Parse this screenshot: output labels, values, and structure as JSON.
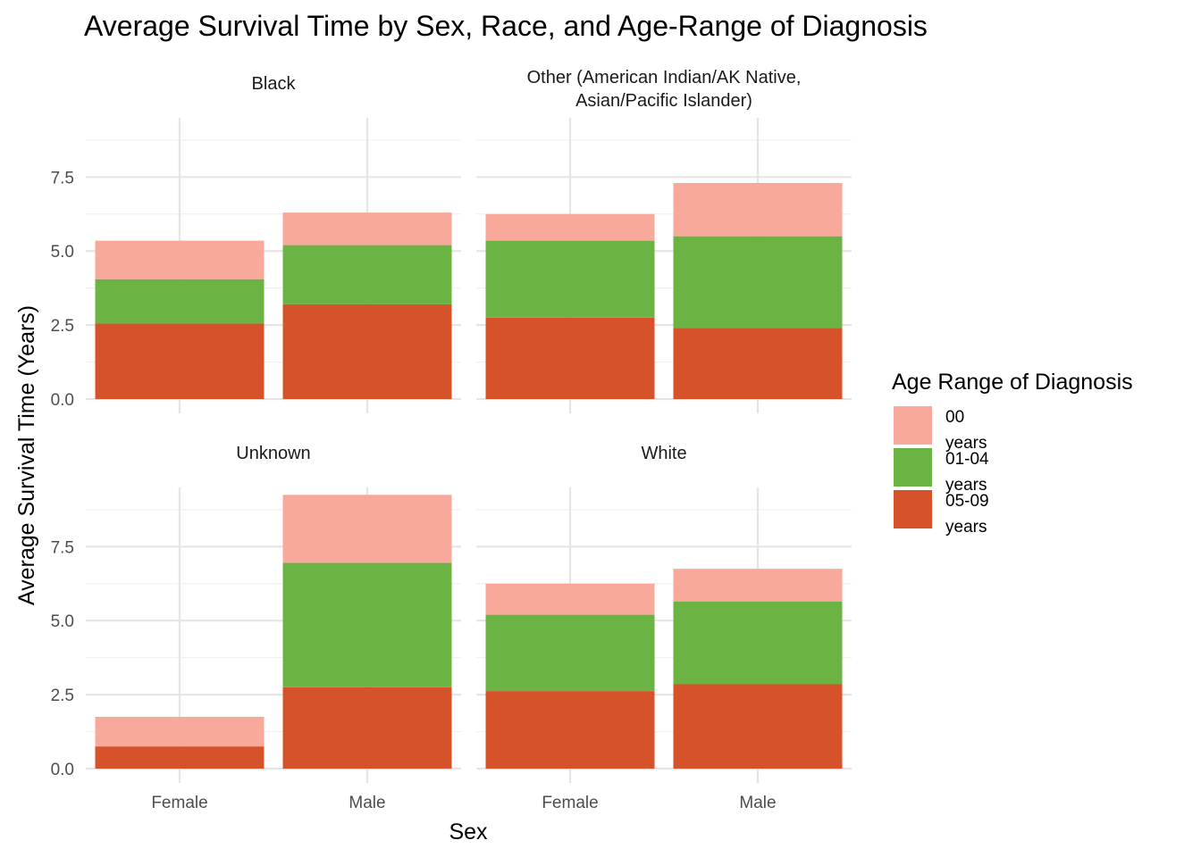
{
  "chart_data": {
    "type": "bar",
    "stacked": true,
    "title": "Average Survival Time by Sex, Race, and Age-Range of Diagnosis",
    "xlabel": "Sex",
    "ylabel": "Average Survival Time (Years)",
    "categories": [
      "Female",
      "Male"
    ],
    "ylim": [
      0,
      9.5
    ],
    "y_ticks": [
      "0.0",
      "2.5",
      "5.0",
      "7.5"
    ],
    "grid": true,
    "legend": {
      "title": "Age Range of Diagnosis",
      "placement": "right",
      "entries": [
        {
          "key": "00",
          "lines": [
            "00",
            "years"
          ],
          "color": "#F8A99C"
        },
        {
          "key": "01-04",
          "lines": [
            "01-04",
            "years"
          ],
          "color": "#6BB343"
        },
        {
          "key": "05-09",
          "lines": [
            "05-09",
            "years"
          ],
          "color": "#D6522B"
        }
      ]
    },
    "stack_order": [
      "05-09",
      "01-04",
      "00"
    ],
    "facets": [
      {
        "strip": [
          "Black"
        ],
        "bars": {
          "Female": {
            "05-09": 2.55,
            "01-04": 1.5,
            "00": 1.3
          },
          "Male": {
            "05-09": 3.2,
            "01-04": 2.0,
            "00": 1.1
          }
        }
      },
      {
        "strip": [
          "Other (American Indian/AK Native,",
          "Asian/Pacific Islander)"
        ],
        "bars": {
          "Female": {
            "05-09": 2.75,
            "01-04": 2.6,
            "00": 0.9
          },
          "Male": {
            "05-09": 2.4,
            "01-04": 3.1,
            "00": 1.8
          }
        }
      },
      {
        "strip": [
          "Unknown"
        ],
        "bars": {
          "Female": {
            "05-09": 0.75,
            "01-04": 0.0,
            "00": 1.0
          },
          "Male": {
            "05-09": 2.75,
            "01-04": 4.2,
            "00": 2.3
          }
        }
      },
      {
        "strip": [
          "White"
        ],
        "bars": {
          "Female": {
            "05-09": 2.62,
            "01-04": 2.58,
            "00": 1.05
          },
          "Male": {
            "05-09": 2.85,
            "01-04": 2.8,
            "00": 1.1
          }
        }
      }
    ]
  }
}
